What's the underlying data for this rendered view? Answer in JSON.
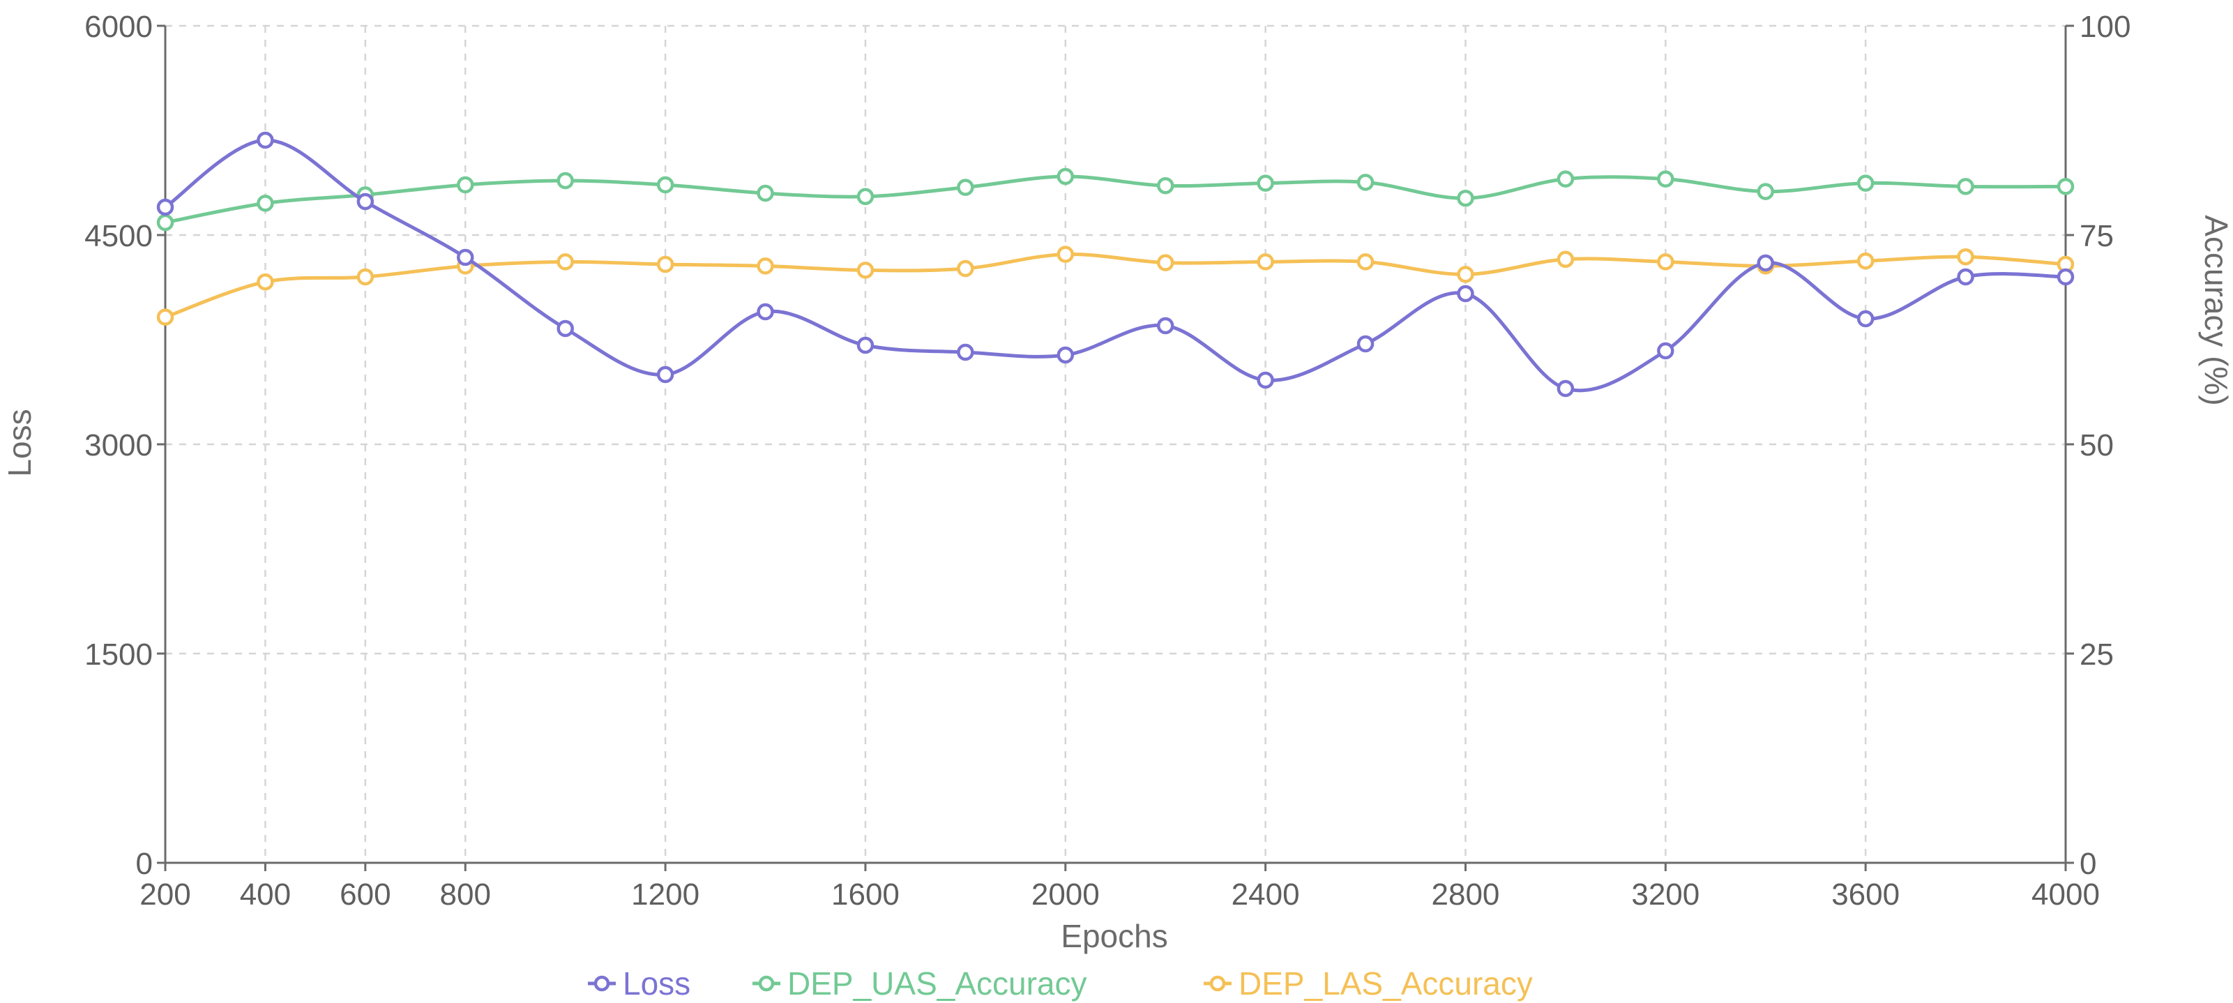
{
  "chart_data": {
    "type": "line",
    "xlabel": "Epochs",
    "ylabel_left": "Loss",
    "ylabel_right": "Accuracy (%)",
    "x_ticks": [
      200,
      400,
      600,
      800,
      1200,
      1600,
      2000,
      2400,
      2800,
      3200,
      3600,
      4000
    ],
    "y_left_ticks": [
      0,
      1500,
      3000,
      4500,
      6000
    ],
    "y_right_ticks": [
      0,
      25,
      50,
      75,
      100
    ],
    "ylim_left": [
      0,
      6000
    ],
    "ylim_right": [
      0,
      100
    ],
    "xlim": [
      200,
      4000
    ],
    "grid": true,
    "legend_position": "bottom-center",
    "x": [
      200,
      400,
      600,
      800,
      1000,
      1200,
      1400,
      1600,
      1800,
      2000,
      2200,
      2400,
      2600,
      2800,
      3000,
      3200,
      3400,
      3600,
      3800,
      4000
    ],
    "series": [
      {
        "name": "Loss",
        "axis": "left",
        "color": "#7b73d3",
        "values": [
          4700,
          5180,
          4740,
          4340,
          3830,
          3500,
          3950,
          3710,
          3660,
          3640,
          3850,
          3460,
          3720,
          4080,
          3400,
          3670,
          4300,
          3900,
          4200,
          4200
        ]
      },
      {
        "name": "DEP_UAS_Accuracy",
        "axis": "right",
        "color": "#72c994",
        "values": [
          76.5,
          78.8,
          79.8,
          81.0,
          81.5,
          81.0,
          80.0,
          79.6,
          80.7,
          82.0,
          80.9,
          81.2,
          81.3,
          79.4,
          81.7,
          81.7,
          80.2,
          81.2,
          80.8,
          80.8
        ]
      },
      {
        "name": "DEP_LAS_Accuracy",
        "axis": "right",
        "color": "#f5c056",
        "values": [
          65.2,
          69.4,
          70.0,
          71.3,
          71.8,
          71.5,
          71.3,
          70.8,
          71.0,
          72.7,
          71.7,
          71.8,
          71.8,
          70.3,
          72.1,
          71.8,
          71.3,
          71.9,
          72.4,
          71.5
        ]
      }
    ]
  }
}
